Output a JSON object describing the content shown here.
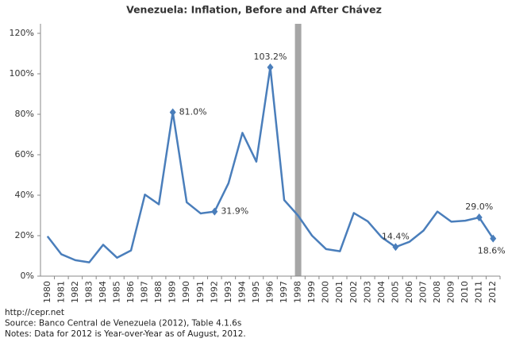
{
  "chart_data": {
    "type": "line",
    "title": "Venezuela: Inflation, Before and After Chávez",
    "categories": [
      "1980",
      "1981",
      "1982",
      "1983",
      "1984",
      "1985",
      "1986",
      "1987",
      "1988",
      "1989",
      "1990",
      "1991",
      "1992",
      "1993",
      "1994",
      "1995",
      "1996",
      "1997",
      "1998",
      "1999",
      "2000",
      "2001",
      "2002",
      "2003",
      "2004",
      "2005",
      "2006",
      "2007",
      "2008",
      "2009",
      "2010",
      "2011",
      "2012"
    ],
    "series": [
      {
        "name": "Inflation",
        "color": "#4a7ebb",
        "values": [
          19.7,
          10.8,
          7.9,
          6.8,
          15.5,
          9.1,
          12.7,
          40.3,
          35.5,
          81.0,
          36.5,
          31.0,
          31.9,
          45.9,
          70.8,
          56.6,
          103.2,
          37.6,
          29.9,
          20.0,
          13.4,
          12.3,
          31.2,
          27.1,
          19.2,
          14.4,
          17.0,
          22.5,
          31.9,
          26.9,
          27.4,
          29.0,
          18.6
        ],
        "value_labels": [
          null,
          null,
          null,
          null,
          null,
          null,
          null,
          null,
          null,
          "81.0%",
          null,
          null,
          "31.9%",
          null,
          null,
          null,
          "103.2%",
          null,
          null,
          null,
          null,
          null,
          null,
          null,
          null,
          "14.4%",
          null,
          null,
          null,
          null,
          null,
          "29.0%",
          "18.6%"
        ]
      }
    ],
    "ylim": [
      0,
      120
    ],
    "yticks": [
      {
        "value": 0,
        "label": "0%"
      },
      {
        "value": 20,
        "label": "20%"
      },
      {
        "value": 40,
        "label": "40%"
      },
      {
        "value": 60,
        "label": "60%"
      },
      {
        "value": 80,
        "label": "80%"
      },
      {
        "value": 100,
        "label": "100%"
      },
      {
        "value": 120,
        "label": "120%"
      }
    ],
    "grid": false,
    "vertical_band": "1998",
    "band_color": "#a6a6a6",
    "notes": [
      "http://cepr.net",
      "Source: Banco Central de Venezuela (2012), Table 4.1.6s",
      "Notes: Data for 2012 is Year-over-Year as of August, 2012."
    ]
  }
}
